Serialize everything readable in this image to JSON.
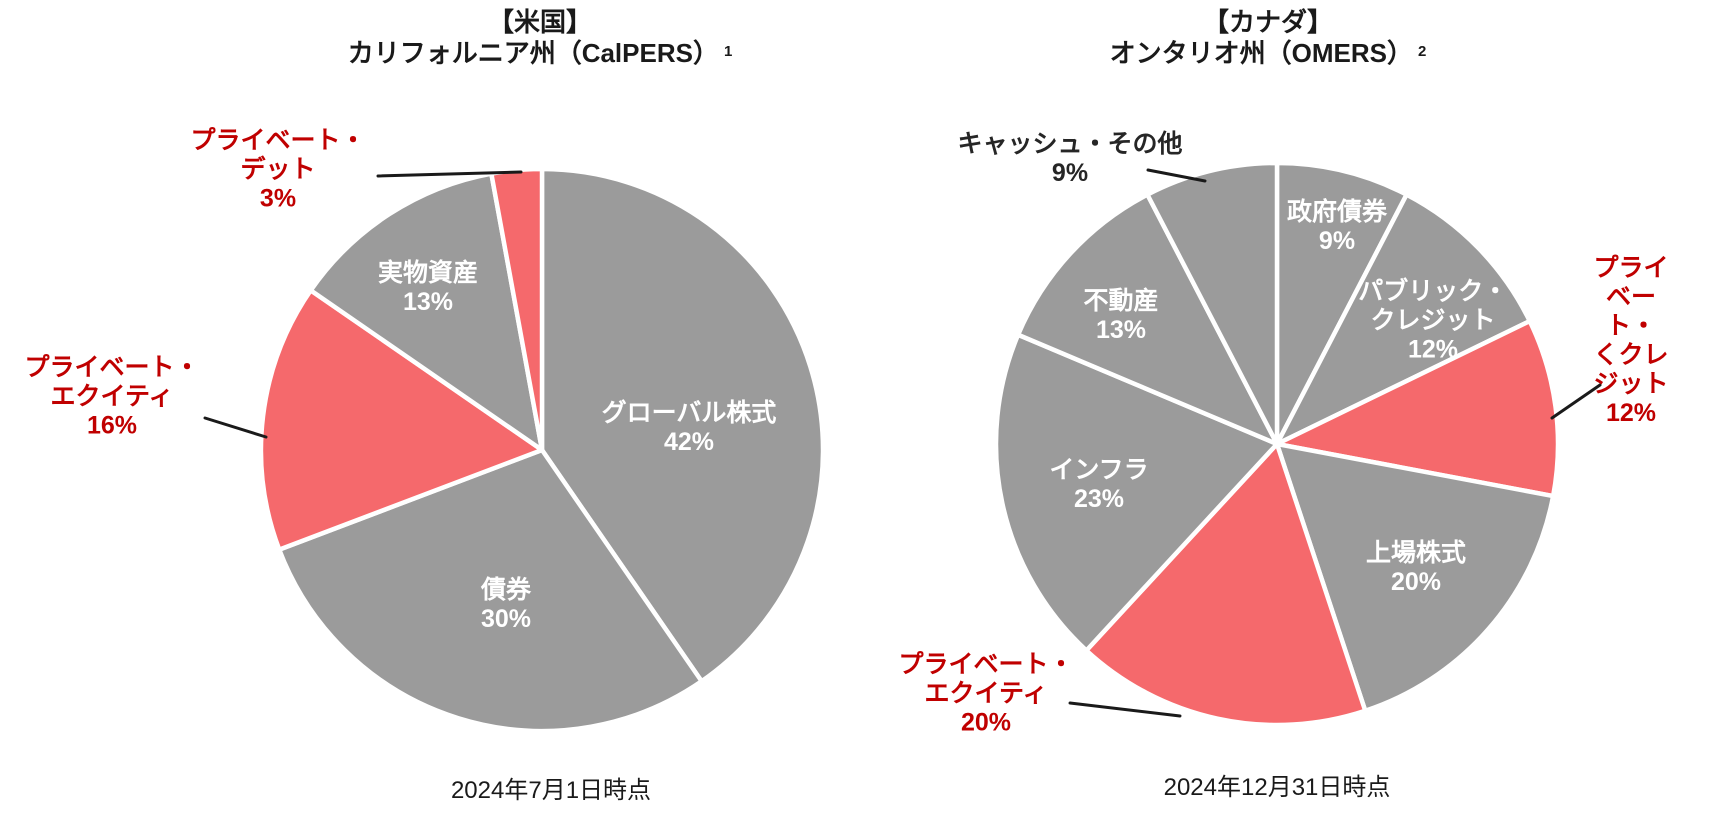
{
  "colors": {
    "background": "#ffffff",
    "slice_gray": "#9b9b9b",
    "slice_red": "#f5696c",
    "separator": "#ffffff",
    "label_on_slice": "#ffffff",
    "label_red": "#c00000",
    "label_black": "#262626",
    "leader_line": "#1a1a1a"
  },
  "chart_data": [
    {
      "type": "pie",
      "title_line1": "【米国】",
      "title_line2": "カリフォルニア州（CalPERS）",
      "footnote_marker": "1",
      "as_of": "2024年7月1日時点",
      "legend_position": "none",
      "start_angle_deg": 0,
      "direction": "clockwise",
      "slices": [
        {
          "label": "グローバル株式",
          "pct_label": "42%",
          "value": 42,
          "color": "#9b9b9b",
          "label_placement": "inside",
          "emphasis": false
        },
        {
          "label": "債券",
          "pct_label": "30%",
          "value": 30,
          "color": "#9b9b9b",
          "label_placement": "inside",
          "emphasis": false
        },
        {
          "label": "プライベート・\nエクイティ",
          "pct_label": "16%",
          "value": 16,
          "color": "#f5696c",
          "label_placement": "outside",
          "emphasis": true
        },
        {
          "label": "実物資産",
          "pct_label": "13%",
          "value": 13,
          "color": "#9b9b9b",
          "label_placement": "inside",
          "emphasis": false
        },
        {
          "label": "プライベート・\nデット",
          "pct_label": "3%",
          "value": 3,
          "color": "#f5696c",
          "label_placement": "outside",
          "emphasis": true
        }
      ]
    },
    {
      "type": "pie",
      "title_line1": "【カナダ】",
      "title_line2": "オンタリオ州（OMERS）",
      "footnote_marker": "2",
      "as_of": "2024年12月31日時点",
      "legend_position": "none",
      "start_angle_deg": 0,
      "direction": "clockwise",
      "slices": [
        {
          "label": "政府債券",
          "pct_label": "9%",
          "value": 9,
          "color": "#9b9b9b",
          "label_placement": "inside",
          "emphasis": false
        },
        {
          "label": "パブリック・\nクレジット",
          "pct_label": "12%",
          "value": 12,
          "color": "#9b9b9b",
          "label_placement": "inside",
          "emphasis": false
        },
        {
          "label": "プライベート・\nくクレジット",
          "pct_label": "12%",
          "value": 12,
          "color": "#f5696c",
          "label_placement": "outside",
          "emphasis": true
        },
        {
          "label": "上場株式",
          "pct_label": "20%",
          "value": 20,
          "color": "#9b9b9b",
          "label_placement": "inside",
          "emphasis": false
        },
        {
          "label": "プライベート・\nエクイティ",
          "pct_label": "20%",
          "value": 20,
          "color": "#f5696c",
          "label_placement": "outside",
          "emphasis": true
        },
        {
          "label": "インフラ",
          "pct_label": "23%",
          "value": 23,
          "color": "#9b9b9b",
          "label_placement": "inside",
          "emphasis": false
        },
        {
          "label": "不動産",
          "pct_label": "13%",
          "value": 13,
          "color": "#9b9b9b",
          "label_placement": "inside",
          "emphasis": false
        },
        {
          "label": "キャッシュ・その他",
          "pct_label": "9%",
          "value": 9,
          "color": "#9b9b9b",
          "label_placement": "outside-black",
          "emphasis": false
        }
      ]
    }
  ]
}
